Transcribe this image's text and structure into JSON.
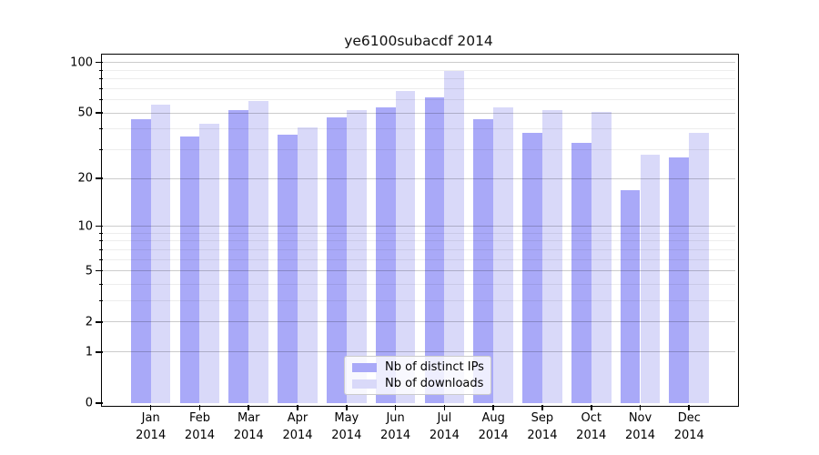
{
  "chart_data": {
    "type": "bar",
    "title": "ye6100subacdf 2014",
    "categories": [
      "Jan",
      "Feb",
      "Mar",
      "Apr",
      "May",
      "Jun",
      "Jul",
      "Aug",
      "Sep",
      "Oct",
      "Nov",
      "Dec"
    ],
    "x_axis": {
      "year_line": "2014"
    },
    "series": [
      {
        "name": "Nb of distinct IPs",
        "color": "#a9a9f8",
        "values": [
          46,
          36,
          52,
          37,
          47,
          54,
          62,
          46,
          38,
          33,
          17,
          27
        ]
      },
      {
        "name": "Nb of downloads",
        "color": "#d9d9f9",
        "values": [
          56,
          43,
          59,
          41,
          52,
          68,
          89,
          54,
          52,
          51,
          28,
          38
        ]
      }
    ],
    "y_axis": {
      "scale": "log1p",
      "ylim": [
        0,
        110
      ],
      "major_ticks": [
        100,
        50,
        20,
        10,
        5,
        2,
        1,
        0
      ],
      "minor_gridlines": [
        3,
        4,
        6,
        7,
        8,
        9,
        30,
        40,
        60,
        70,
        80,
        90
      ]
    },
    "legend": {
      "position": "bottom-center"
    },
    "grid": true
  }
}
